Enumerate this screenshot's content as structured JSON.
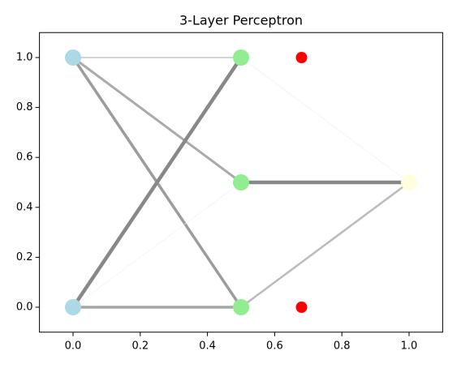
{
  "chart_data": {
    "type": "network",
    "title": "3-Layer Perceptron",
    "xlim": [
      -0.1,
      1.1
    ],
    "ylim": [
      -0.1,
      1.1
    ],
    "xticks": [
      {
        "value": 0,
        "label": "0.0"
      },
      {
        "value": 0.2,
        "label": "0.2"
      },
      {
        "value": 0.4,
        "label": "0.4"
      },
      {
        "value": 0.6,
        "label": "0.6"
      },
      {
        "value": 0.8,
        "label": "0.8"
      },
      {
        "value": 1,
        "label": "1.0"
      }
    ],
    "yticks": [
      {
        "value": 0,
        "label": "0.0"
      },
      {
        "value": 0.2,
        "label": "0.2"
      },
      {
        "value": 0.4,
        "label": "0.4"
      },
      {
        "value": 0.6,
        "label": "0.6"
      },
      {
        "value": 0.8,
        "label": "0.8"
      },
      {
        "value": 1,
        "label": "1.0"
      }
    ],
    "grid": false,
    "edges": [
      {
        "x": [
          0,
          0.5
        ],
        "values": [
          1,
          1
        ],
        "color": "#d4d4d4",
        "linewidth": 2
      },
      {
        "x": [
          0,
          0.5
        ],
        "values": [
          1,
          0.5
        ],
        "color": "#aaaaaa",
        "linewidth": 3
      },
      {
        "x": [
          0,
          0.5
        ],
        "values": [
          1,
          0
        ],
        "color": "#9c9c9c",
        "linewidth": 3.5
      },
      {
        "x": [
          0,
          0.5
        ],
        "values": [
          0,
          1
        ],
        "color": "#888888",
        "linewidth": 4.5
      },
      {
        "x": [
          0,
          0.5
        ],
        "values": [
          0,
          0.5
        ],
        "color": "#eeeeee",
        "linewidth": 0.6
      },
      {
        "x": [
          0,
          0.5
        ],
        "values": [
          0,
          0
        ],
        "color": "#a5a5a5",
        "linewidth": 3.5
      },
      {
        "x": [
          0.5,
          1
        ],
        "values": [
          1,
          0.5
        ],
        "color": "#eeeeee",
        "linewidth": 0.6
      },
      {
        "x": [
          0.5,
          1
        ],
        "values": [
          0.5,
          0.5
        ],
        "color": "#888888",
        "linewidth": 4.5
      },
      {
        "x": [
          0.5,
          1
        ],
        "values": [
          0,
          0.5
        ],
        "color": "#bbbbbb",
        "linewidth": 2.5
      }
    ],
    "nodes": [
      {
        "color": "#add8e6",
        "x": [
          0,
          0
        ],
        "values": [
          0,
          1
        ]
      },
      {
        "color": "#90ee90",
        "x": [
          0.5,
          0.5,
          0.5
        ],
        "values": [
          0,
          0.5,
          1
        ]
      },
      {
        "color": "#ffffe0",
        "x": [
          1
        ],
        "values": [
          0.5
        ]
      },
      {
        "color": "#ff0000",
        "x": [
          0.68,
          0.68
        ],
        "values": [
          1,
          0
        ],
        "small": true
      }
    ]
  }
}
